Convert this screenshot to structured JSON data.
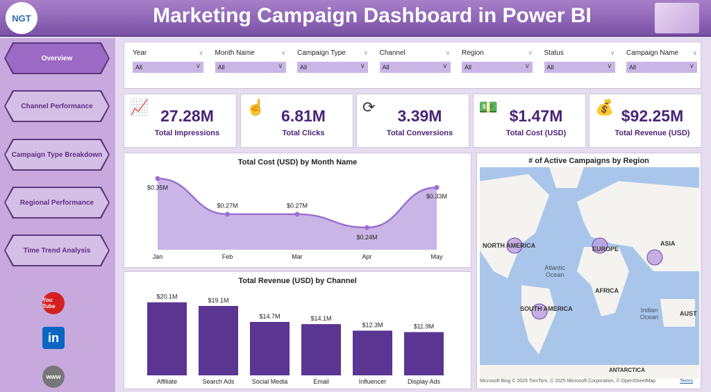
{
  "header": {
    "title": "Marketing Campaign Dashboard in Power BI",
    "logo_text": "NGT"
  },
  "nav": [
    {
      "label": "Overview",
      "active": true
    },
    {
      "label": "Channel Performance"
    },
    {
      "label": "Campaign Type Breakdown"
    },
    {
      "label": "Regional Performance"
    },
    {
      "label": "Time Trend Analysis"
    }
  ],
  "social": [
    {
      "icon": "youtube-icon",
      "label": "You Tube"
    },
    {
      "icon": "linkedin-icon",
      "label": "in"
    },
    {
      "icon": "globe-icon",
      "label": "www"
    }
  ],
  "filters": [
    {
      "label": "Year",
      "value": "All"
    },
    {
      "label": "Month Name",
      "value": "All"
    },
    {
      "label": "Campaign Type",
      "value": "All"
    },
    {
      "label": "Channel",
      "value": "All"
    },
    {
      "label": "Region",
      "value": "All"
    },
    {
      "label": "Status",
      "value": "All"
    },
    {
      "label": "Campaign Name",
      "value": "All"
    }
  ],
  "kpis": [
    {
      "value": "27.28M",
      "label": "Total Impressions",
      "icon": "impressions-icon"
    },
    {
      "value": "6.81M",
      "label": "Total Clicks",
      "icon": "click-icon"
    },
    {
      "value": "3.39M",
      "label": "Total Conversions",
      "icon": "conversion-icon"
    },
    {
      "value": "$1.47M",
      "label": "Total Cost (USD)",
      "icon": "cost-icon"
    },
    {
      "value": "$92.25M",
      "label": "Total Revenue (USD)",
      "icon": "revenue-icon"
    }
  ],
  "chart_data": [
    {
      "type": "area",
      "title": "Total Cost (USD) by Month Name",
      "categories": [
        "Jan",
        "Feb",
        "Mar",
        "Apr",
        "May"
      ],
      "values": [
        0.35,
        0.27,
        0.27,
        0.24,
        0.33
      ],
      "labels": [
        "$0.35M",
        "$0.27M",
        "$0.27M",
        "$0.24M",
        "$0.33M"
      ],
      "ylim": [
        0.19,
        0.36
      ],
      "color": "#9b6fd0"
    },
    {
      "type": "bar",
      "title": "Total Revenue (USD) by Channel",
      "categories": [
        "Affiliate",
        "Search Ads",
        "Social Media",
        "Email",
        "Influencer",
        "Display Ads"
      ],
      "values": [
        20.1,
        19.1,
        14.7,
        14.1,
        12.3,
        11.9
      ],
      "labels": [
        "$20.1M",
        "$19.1M",
        "$14.7M",
        "$14.1M",
        "$12.3M",
        "$11.9M"
      ],
      "ylim": [
        0,
        21
      ],
      "color": "#5a3592"
    }
  ],
  "map": {
    "title": "# of Active Campaigns by Region",
    "labels": [
      "NORTH AMERICA",
      "EUROPE",
      "ASIA",
      "Atlantic Ocean",
      "AFRICA",
      "SOUTH AMERICA",
      "Indian Ocean",
      "AUST",
      "ANTARCTICA"
    ],
    "attribution": "Microsoft Bing  © 2025 TomTom, © 2025 Microsoft Corporation, © OpenStreetMap",
    "terms": "Terms"
  }
}
